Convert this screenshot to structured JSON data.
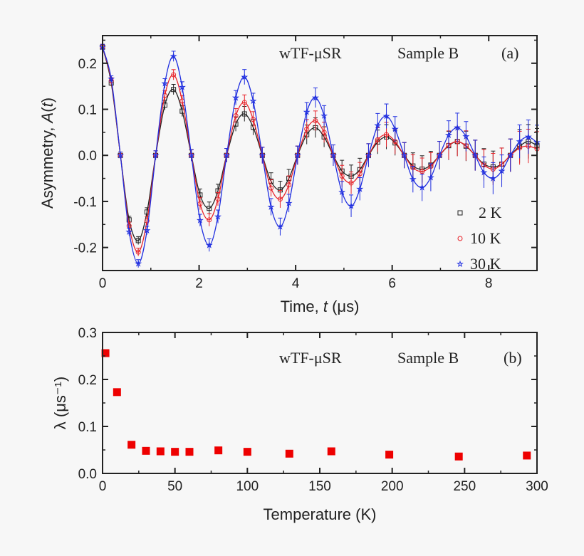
{
  "chart_data": [
    {
      "type": "scatter",
      "panel_label": "(a)",
      "annotations": [
        "wTF-μSR",
        "Sample B"
      ],
      "xlabel": "Time, t (μs)",
      "ylabel": "Asymmetry, A(t)",
      "xlim": [
        0,
        9
      ],
      "ylim": [
        -0.25,
        0.26
      ],
      "xticks": [
        "0",
        "2",
        "4",
        "6",
        "8"
      ],
      "yticks": [
        "-0.2",
        "-0.1",
        "0.0",
        "0.1",
        "0.2"
      ],
      "legend_position": "bottom-right",
      "x": [
        0,
        0.18,
        0.37,
        0.55,
        0.74,
        0.92,
        1.1,
        1.29,
        1.47,
        1.65,
        1.84,
        2.02,
        2.21,
        2.39,
        2.57,
        2.76,
        2.94,
        3.12,
        3.31,
        3.49,
        3.68,
        3.86,
        4.04,
        4.23,
        4.41,
        4.59,
        4.78,
        4.96,
        5.15,
        5.33,
        5.51,
        5.7,
        5.88,
        6.06,
        6.25,
        6.43,
        6.62,
        6.8,
        6.98,
        7.17,
        7.35,
        7.53,
        7.72,
        7.9,
        8.09,
        8.27,
        8.45,
        8.64,
        8.82,
        9.0
      ],
      "series": [
        {
          "name": "2 K",
          "color": "#222222",
          "marker": "open-square",
          "values": [
            0.235,
            0.157,
            0,
            -0.14,
            -0.185,
            -0.123,
            0,
            0.109,
            0.143,
            0.096,
            0,
            -0.086,
            -0.115,
            -0.077,
            0,
            0.068,
            0.09,
            0.061,
            0,
            -0.056,
            -0.075,
            -0.05,
            0,
            0.045,
            0.06,
            0.04,
            0,
            -0.034,
            -0.045,
            -0.031,
            0,
            0.029,
            0.04,
            0.027,
            0,
            -0.023,
            -0.03,
            -0.021,
            0,
            0.021,
            0.03,
            0.02,
            0,
            -0.019,
            -0.025,
            -0.019,
            0,
            0.02,
            0.03,
            0.021
          ]
        },
        {
          "name": "10 K",
          "color": "#e8232a",
          "marker": "open-circle",
          "values": [
            0.235,
            0.162,
            0,
            -0.153,
            -0.21,
            -0.142,
            0,
            0.13,
            0.175,
            0.118,
            0,
            -0.105,
            -0.14,
            -0.095,
            0,
            0.086,
            0.115,
            0.078,
            0,
            -0.071,
            -0.095,
            -0.064,
            0,
            0.057,
            0.075,
            0.05,
            0,
            -0.045,
            -0.06,
            -0.04,
            0,
            0.034,
            0.045,
            0.03,
            0,
            -0.027,
            -0.035,
            -0.024,
            0,
            0.022,
            0.03,
            0.021,
            0,
            -0.021,
            -0.03,
            -0.019,
            0,
            0.016,
            0.02,
            0.014
          ]
        },
        {
          "name": "30 K",
          "color": "#1f2ee0",
          "marker": "star",
          "values": [
            0.235,
            0.166,
            0,
            -0.166,
            -0.235,
            -0.163,
            0,
            0.156,
            0.215,
            0.148,
            0,
            -0.141,
            -0.195,
            -0.133,
            0,
            0.125,
            0.17,
            0.118,
            0,
            -0.112,
            -0.155,
            -0.104,
            0,
            0.094,
            0.125,
            0.086,
            0,
            -0.08,
            -0.11,
            -0.073,
            0,
            0.065,
            0.085,
            0.057,
            0,
            -0.052,
            -0.07,
            -0.048,
            0,
            0.044,
            0.06,
            0.041,
            0,
            -0.037,
            -0.05,
            -0.034,
            0,
            0.03,
            0.04,
            0.028
          ]
        }
      ]
    },
    {
      "type": "scatter",
      "panel_label": "(b)",
      "annotations": [
        "wTF-μSR",
        "Sample B"
      ],
      "xlabel": "Temperature (K)",
      "ylabel": "λ (μs⁻¹)",
      "xlim": [
        0,
        300
      ],
      "ylim": [
        0,
        0.3
      ],
      "xticks": [
        "0",
        "50",
        "100",
        "150",
        "200",
        "250",
        "300"
      ],
      "yticks": [
        "0.0",
        "0.1",
        "0.2",
        "0.3"
      ],
      "marker": "filled-square",
      "color": "#ee0000",
      "x": [
        2,
        10,
        20,
        30,
        40,
        50,
        60,
        80,
        100,
        129,
        158,
        198,
        246,
        293
      ],
      "values": [
        0.256,
        0.173,
        0.061,
        0.048,
        0.047,
        0.046,
        0.046,
        0.049,
        0.046,
        0.042,
        0.047,
        0.04,
        0.036,
        0.038
      ]
    }
  ]
}
